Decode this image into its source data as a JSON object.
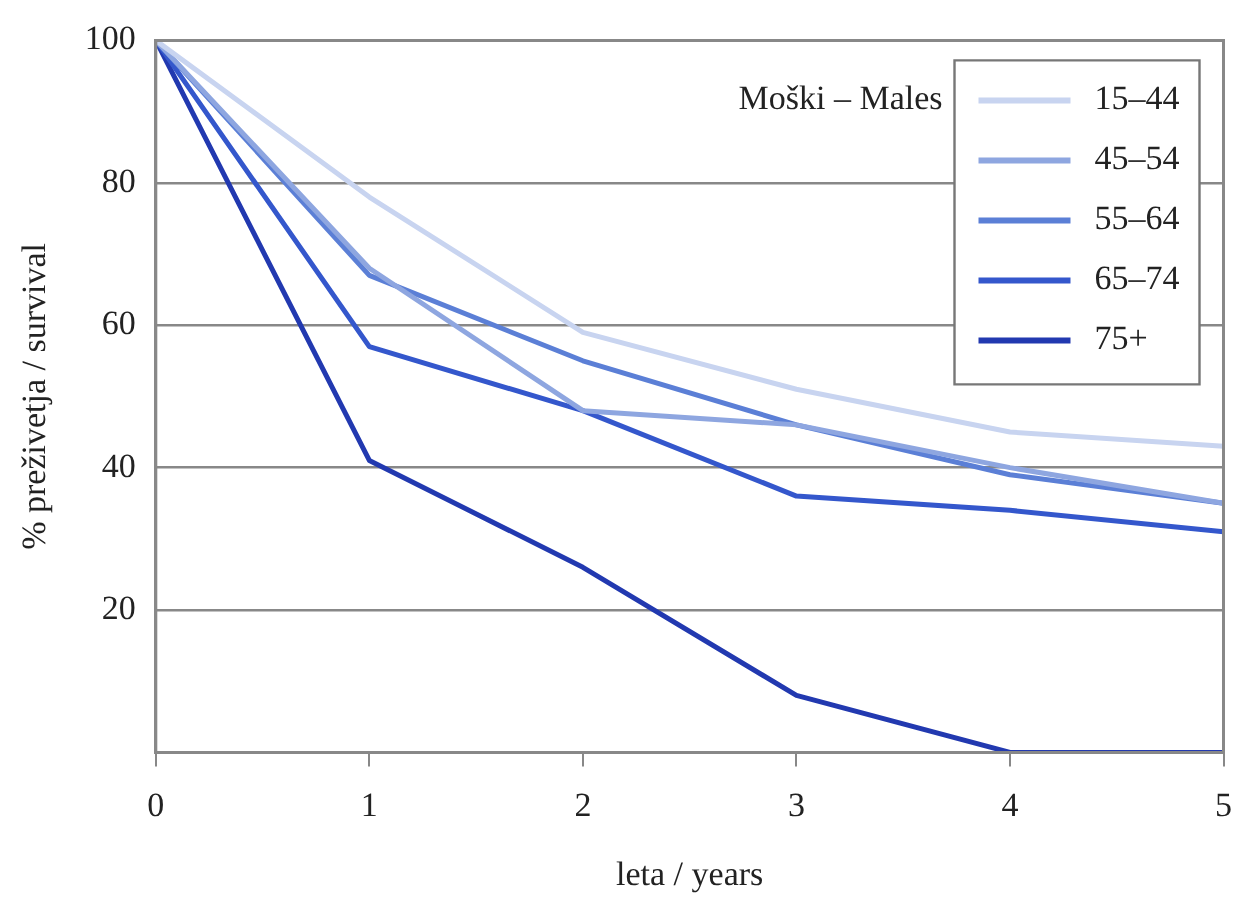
{
  "chart_data": {
    "type": "line",
    "xlabel": "leta / years",
    "ylabel": "% preživetja / survival",
    "legend_title": "Moški – Males",
    "legend": "top right",
    "grid": "y",
    "marker": "none",
    "line_style": "solid",
    "x": [
      0,
      1,
      2,
      3,
      4,
      5
    ],
    "xlim": [
      0,
      5
    ],
    "xticks": [
      0,
      1,
      2,
      3,
      4,
      5
    ],
    "ylim": [
      0,
      100
    ],
    "yticks": [
      {
        "value": 0,
        "label": null
      },
      20,
      40,
      60,
      80,
      100
    ],
    "series": [
      {
        "name": "15–44",
        "color": "#c8d4f0",
        "values": [
          100,
          78,
          59,
          51,
          45,
          43
        ]
      },
      {
        "name": "45–54",
        "color": "#8ea6e0",
        "values": [
          100,
          68,
          48,
          46,
          40,
          35
        ]
      },
      {
        "name": "55–64",
        "color": "#5b7fd6",
        "values": [
          100,
          67,
          55,
          46,
          39,
          35
        ]
      },
      {
        "name": "65–74",
        "color": "#3457cc",
        "values": [
          100,
          57,
          48,
          36,
          34,
          31
        ]
      },
      {
        "name": "75+",
        "color": "#2239b0",
        "values": [
          100,
          41,
          26,
          8,
          0,
          0
        ]
      }
    ]
  }
}
